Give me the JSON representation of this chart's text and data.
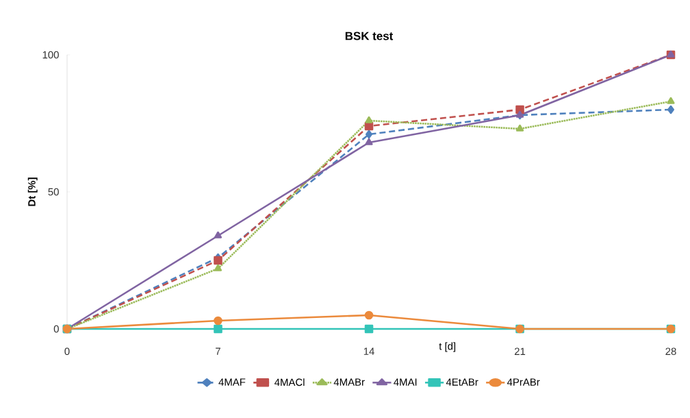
{
  "chart_data": {
    "type": "line",
    "title": "BSK test",
    "xlabel": "t [d]",
    "ylabel": "Dt [%]",
    "x": [
      0,
      7,
      14,
      21,
      28
    ],
    "series": [
      {
        "name": "4MAF",
        "color": "#4f81bd",
        "marker": "diamond",
        "line_style": "dashed",
        "values": [
          0,
          26,
          71,
          78,
          80
        ]
      },
      {
        "name": "4MACl",
        "color": "#c0504d",
        "marker": "square",
        "line_style": "dashed",
        "values": [
          0,
          25,
          74,
          80,
          100
        ]
      },
      {
        "name": "4MABr",
        "color": "#9bbb59",
        "marker": "triangle",
        "line_style": "dotted",
        "values": [
          0,
          22,
          76,
          73,
          83
        ]
      },
      {
        "name": "4MAI",
        "color": "#8064a2",
        "marker": "triangle",
        "line_style": "solid",
        "values": [
          0,
          34,
          68,
          78,
          100
        ]
      },
      {
        "name": "4EtABr",
        "color": "#33c4b8",
        "marker": "square",
        "line_style": "solid",
        "values": [
          0,
          0,
          0,
          0,
          0
        ]
      },
      {
        "name": "4PrABr",
        "color": "#eb8a3c",
        "marker": "circle",
        "line_style": "solid",
        "values": [
          0,
          3,
          5,
          0,
          0
        ]
      }
    ],
    "xlim": [
      0,
      28
    ],
    "xticks": [
      0,
      7,
      14,
      21,
      28
    ],
    "ylim": [
      0,
      100
    ],
    "yticks": [
      0,
      50,
      100
    ],
    "grid": false,
    "legend": "bottom"
  }
}
